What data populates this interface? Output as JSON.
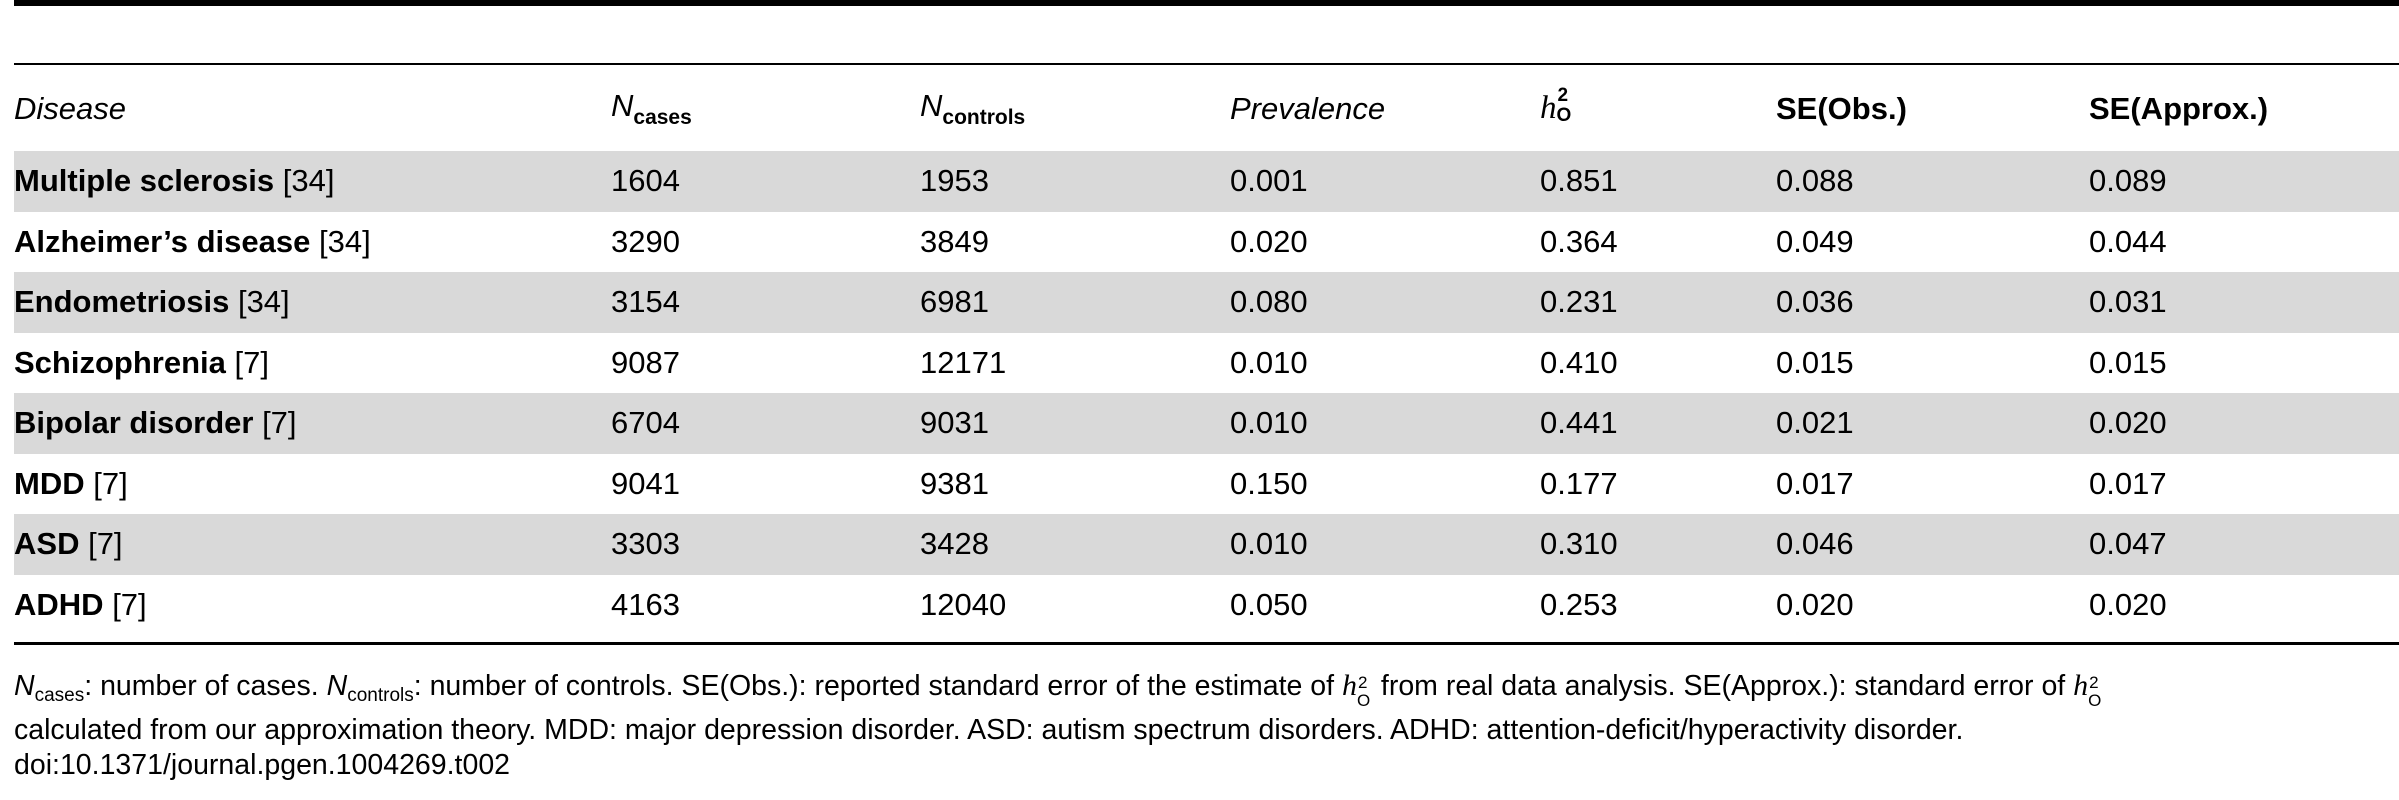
{
  "table": {
    "headers": {
      "disease": "Disease",
      "n_cases_main": "N",
      "n_cases_sub": "cases",
      "n_controls_main": "N",
      "n_controls_sub": "controls",
      "prevalence": "Prevalence",
      "h2_main": "h",
      "h2_sup": "2",
      "h2_sub": "O",
      "se_obs": "SE(Obs.)",
      "se_approx": "SE(Approx.)"
    },
    "rows": [
      {
        "name": "Multiple sclerosis",
        "ref": "[34]",
        "n_cases": "1604",
        "n_controls": "1953",
        "prevalence": "0.001",
        "h2": "0.851",
        "se_obs": "0.088",
        "se_approx": "0.089"
      },
      {
        "name": "Alzheimer’s disease",
        "ref": "[34]",
        "n_cases": "3290",
        "n_controls": "3849",
        "prevalence": "0.020",
        "h2": "0.364",
        "se_obs": "0.049",
        "se_approx": "0.044"
      },
      {
        "name": "Endometriosis",
        "ref": "[34]",
        "n_cases": "3154",
        "n_controls": "6981",
        "prevalence": "0.080",
        "h2": "0.231",
        "se_obs": "0.036",
        "se_approx": "0.031"
      },
      {
        "name": "Schizophrenia",
        "ref": "[7]",
        "n_cases": "9087",
        "n_controls": "12171",
        "prevalence": "0.010",
        "h2": "0.410",
        "se_obs": "0.015",
        "se_approx": "0.015"
      },
      {
        "name": "Bipolar disorder",
        "ref": "[7]",
        "n_cases": "6704",
        "n_controls": "9031",
        "prevalence": "0.010",
        "h2": "0.441",
        "se_obs": "0.021",
        "se_approx": "0.020"
      },
      {
        "name": "MDD",
        "ref": "[7]",
        "n_cases": "9041",
        "n_controls": "9381",
        "prevalence": "0.150",
        "h2": "0.177",
        "se_obs": "0.017",
        "se_approx": "0.017"
      },
      {
        "name": "ASD",
        "ref": "[7]",
        "n_cases": "3303",
        "n_controls": "3428",
        "prevalence": "0.010",
        "h2": "0.310",
        "se_obs": "0.046",
        "se_approx": "0.047"
      },
      {
        "name": "ADHD",
        "ref": "[7]",
        "n_cases": "4163",
        "n_controls": "12040",
        "prevalence": "0.050",
        "h2": "0.253",
        "se_obs": "0.020",
        "se_approx": "0.020"
      }
    ]
  },
  "footnote": {
    "n_main": "N",
    "cases_sub": "cases",
    "part1": ": number of cases. ",
    "controls_sub": "controls",
    "part2": ": number of controls. SE(Obs.): reported standard error of the estimate of ",
    "part3": " from real data analysis. SE(Approx.): standard error of ",
    "h_main": "h",
    "h_sup": "2",
    "h_sub": "O",
    "line2": "calculated from our approximation theory. MDD: major depression disorder. ASD: autism spectrum disorders. ADHD: attention-deficit/hyperactivity disorder.",
    "doi": "doi:10.1371/journal.pgen.1004269.t002"
  }
}
